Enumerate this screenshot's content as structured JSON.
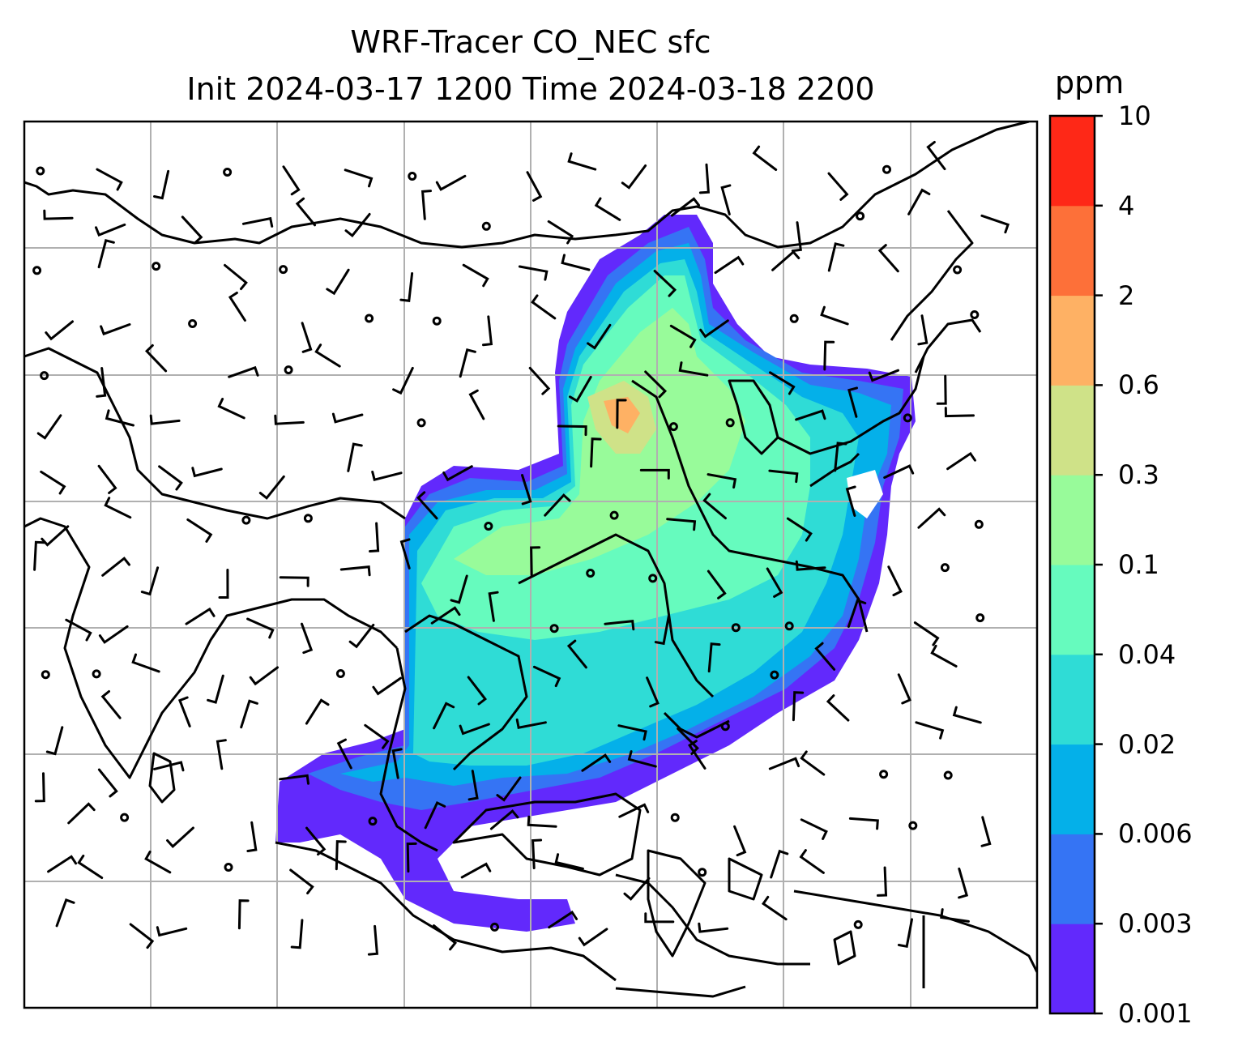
{
  "title": {
    "line1": "WRF-Tracer CO_NEC sfc",
    "line2": "Init 2024-03-17 1200 Time 2024-03-18 2200"
  },
  "colorbar": {
    "unit": "ppm",
    "levels": [
      "0.001",
      "0.003",
      "0.006",
      "0.02",
      "0.04",
      "0.1",
      "0.3",
      "0.6",
      "2",
      "4",
      "10"
    ],
    "colors": [
      "#6229fc",
      "#3574f4",
      "#04b0e9",
      "#2fdcd6",
      "#66fbbe",
      "#98fb9a",
      "#cfe288",
      "#feb164",
      "#fd7039",
      "#fe2817"
    ]
  },
  "map": {
    "gridlines": true,
    "overlay": "wind-barbs",
    "field": "CO_NEC surface tracer concentration"
  }
}
